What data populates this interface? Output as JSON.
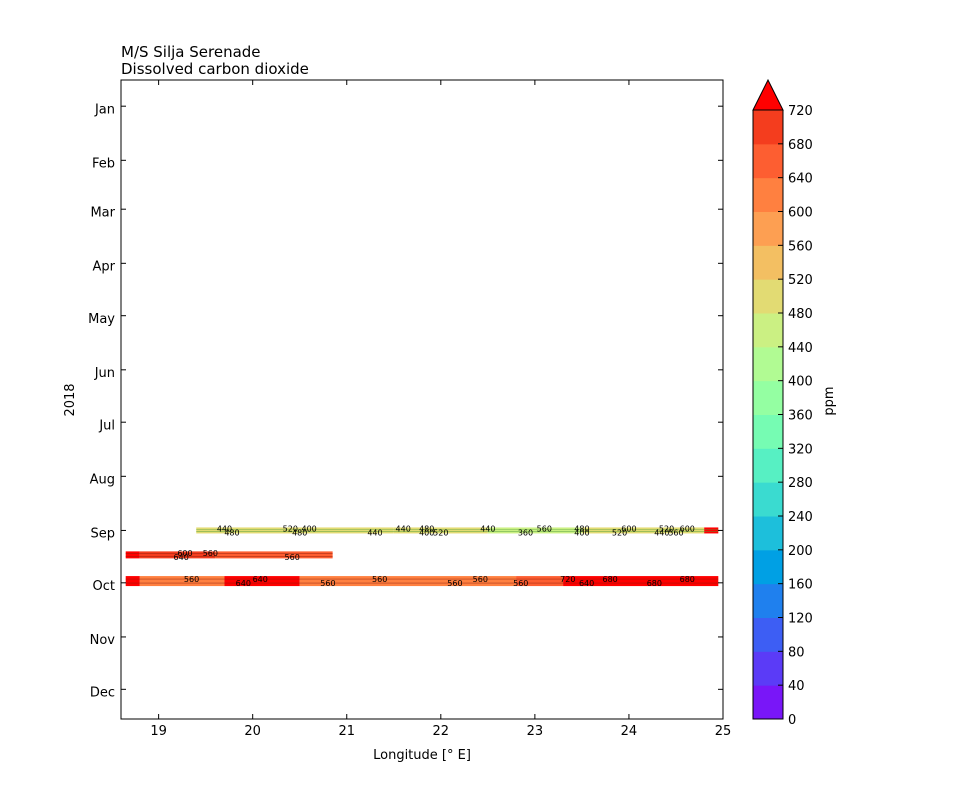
{
  "chart_data": {
    "type": "heatmap",
    "title_line1": "M/S Silja Serenade",
    "title_line2": "Dissolved carbon dioxide",
    "xlabel": "Longitude [° E]",
    "ylabel": "2018",
    "xlim": [
      18.6,
      25.0
    ],
    "x_ticks": [
      "19",
      "20",
      "21",
      "22",
      "23",
      "24",
      "25"
    ],
    "x_tick_values": [
      19,
      20,
      21,
      22,
      23,
      24,
      25
    ],
    "y_ticks": [
      "Jan",
      "Feb",
      "Mar",
      "Apr",
      "May",
      "Jun",
      "Jul",
      "Aug",
      "Sep",
      "Oct",
      "Nov",
      "Dec"
    ],
    "colorbar": {
      "label": "ppm",
      "levels": [
        0,
        40,
        80,
        120,
        160,
        200,
        240,
        280,
        320,
        360,
        400,
        440,
        480,
        520,
        560,
        600,
        640,
        680,
        720
      ],
      "tick_labels": [
        "0",
        "40",
        "80",
        "120",
        "160",
        "200",
        "240",
        "280",
        "320",
        "360",
        "400",
        "440",
        "480",
        "520",
        "560",
        "600",
        "640",
        "680",
        "720"
      ],
      "colors": [
        "#7916f8",
        "#5b3bf7",
        "#3d5ef4",
        "#1f80ee",
        "#00a0e4",
        "#1dbfdb",
        "#3adbd0",
        "#57f0c3",
        "#76fcb3",
        "#94ffa2",
        "#b1fb93",
        "#cbf083",
        "#e2db73",
        "#f3bf62",
        "#fd9f52",
        "#ff8040",
        "#fd5e31",
        "#f43d1e",
        "#ea1b0d"
      ],
      "extend_color": "#ff0000"
    },
    "tracks": [
      {
        "name": "early-sep",
        "lon_range": [
          19.4,
          24.95
        ],
        "date_center": "Sep 01",
        "segments": [
          {
            "lon": [
              19.4,
              20.5
            ],
            "value": 460
          },
          {
            "lon": [
              20.5,
              21.5
            ],
            "value": 440
          },
          {
            "lon": [
              21.5,
              22.5
            ],
            "value": 450
          },
          {
            "lon": [
              22.5,
              23.5
            ],
            "value": 420
          },
          {
            "lon": [
              23.5,
              24.8
            ],
            "value": 470
          },
          {
            "lon": [
              24.8,
              24.95
            ],
            "value": 720
          }
        ],
        "labels": [
          {
            "lon": 19.7,
            "text": "440"
          },
          {
            "lon": 19.78,
            "text": "480"
          },
          {
            "lon": 20.4,
            "text": "520"
          },
          {
            "lon": 20.5,
            "text": "480"
          },
          {
            "lon": 20.6,
            "text": "400"
          },
          {
            "lon": 21.3,
            "text": "440"
          },
          {
            "lon": 21.6,
            "text": "440"
          },
          {
            "lon": 21.85,
            "text": "400"
          },
          {
            "lon": 21.85,
            "text": "480"
          },
          {
            "lon": 22.0,
            "text": "520"
          },
          {
            "lon": 22.5,
            "text": "440"
          },
          {
            "lon": 22.9,
            "text": "360"
          },
          {
            "lon": 23.1,
            "text": "560"
          },
          {
            "lon": 23.5,
            "text": "400"
          },
          {
            "lon": 23.5,
            "text": "480"
          },
          {
            "lon": 23.9,
            "text": "520"
          },
          {
            "lon": 24.0,
            "text": "600"
          },
          {
            "lon": 24.35,
            "text": "440"
          },
          {
            "lon": 24.4,
            "text": "520"
          },
          {
            "lon": 24.5,
            "text": "560"
          },
          {
            "lon": 24.62,
            "text": "600"
          }
        ]
      },
      {
        "name": "mid-sep",
        "lon_range": [
          18.65,
          20.85
        ],
        "date_center": "Sep 15",
        "segments": [
          {
            "lon": [
              18.65,
              18.8
            ],
            "value": 720
          },
          {
            "lon": [
              18.8,
              19.6
            ],
            "value": 640
          },
          {
            "lon": [
              19.6,
              20.85
            ],
            "value": 600
          }
        ],
        "labels": [
          {
            "lon": 19.28,
            "text": "600"
          },
          {
            "lon": 19.24,
            "text": "640"
          },
          {
            "lon": 19.55,
            "text": "560"
          },
          {
            "lon": 20.42,
            "text": "560"
          }
        ]
      },
      {
        "name": "late-sep",
        "lon_range": [
          18.65,
          24.95
        ],
        "date_center": "Sep 30",
        "segments": [
          {
            "lon": [
              18.65,
              18.8
            ],
            "value": 720
          },
          {
            "lon": [
              18.8,
              19.7
            ],
            "value": 560
          },
          {
            "lon": [
              19.7,
              20.5
            ],
            "value": 720
          },
          {
            "lon": [
              20.5,
              22.8
            ],
            "value": 560
          },
          {
            "lon": [
              22.8,
              23.3
            ],
            "value": 600
          },
          {
            "lon": [
              23.3,
              24.95
            ],
            "value": 720
          }
        ],
        "labels": [
          {
            "lon": 19.35,
            "text": "560"
          },
          {
            "lon": 19.9,
            "text": "640"
          },
          {
            "lon": 20.08,
            "text": "640"
          },
          {
            "lon": 20.8,
            "text": "560"
          },
          {
            "lon": 21.35,
            "text": "560"
          },
          {
            "lon": 22.15,
            "text": "560"
          },
          {
            "lon": 22.42,
            "text": "560"
          },
          {
            "lon": 22.85,
            "text": "560"
          },
          {
            "lon": 23.35,
            "text": "720"
          },
          {
            "lon": 23.55,
            "text": "640"
          },
          {
            "lon": 23.8,
            "text": "680"
          },
          {
            "lon": 24.27,
            "text": "680"
          },
          {
            "lon": 24.62,
            "text": "680"
          }
        ]
      }
    ]
  }
}
